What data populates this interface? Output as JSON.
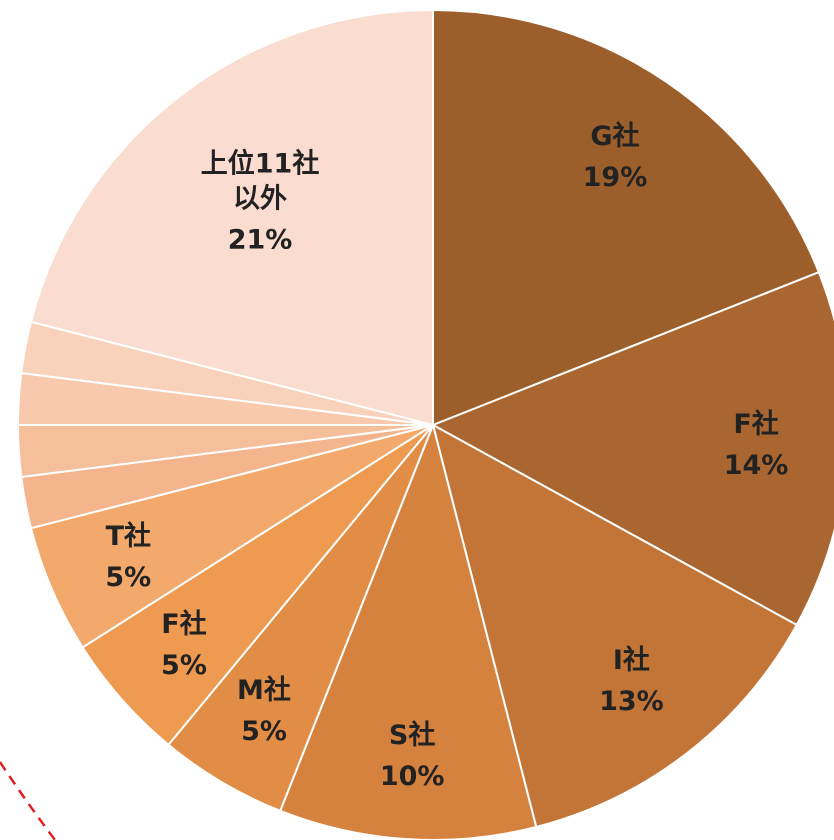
{
  "chart_data": {
    "type": "pie",
    "categories": [
      "G社",
      "F社",
      "I社",
      "S社",
      "M社",
      "F社",
      "T社",
      null,
      null,
      null,
      null,
      "上位11社\n以外"
    ],
    "values": [
      19,
      14,
      13,
      10,
      5,
      5,
      5,
      2,
      2,
      2,
      2,
      21
    ],
    "value_labels": [
      "19%",
      "14%",
      "13%",
      "10%",
      "5%",
      "5%",
      "5%",
      null,
      null,
      null,
      null,
      "21%"
    ],
    "colors": [
      "#9c5f2b",
      "#a96631",
      "#c27536",
      "#d5823e",
      "#e28d46",
      "#ee9a50",
      "#f3a96c",
      "#f4b48c",
      "#f6bf9c",
      "#f8c9ac",
      "#f9d2bb",
      "#fbdcd0"
    ]
  }
}
